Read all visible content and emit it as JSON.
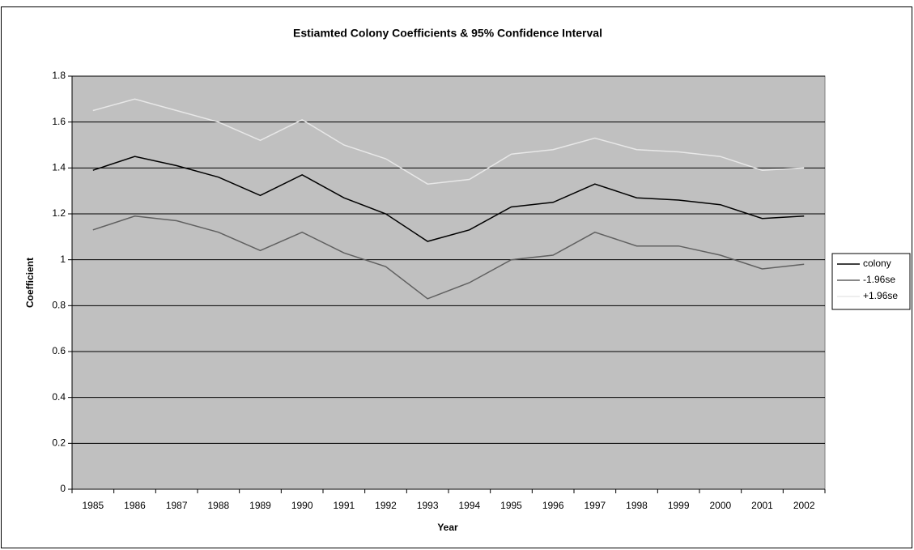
{
  "chart_data": {
    "type": "line",
    "title": "Estiamted Colony Coefficients & 95% Confidence Interval",
    "x_label": "Year",
    "y_label": "Coefficient",
    "categories": [
      "1985",
      "1986",
      "1987",
      "1988",
      "1989",
      "1990",
      "1991",
      "1992",
      "1993",
      "1994",
      "1995",
      "1996",
      "1997",
      "1998",
      "1999",
      "2000",
      "2001",
      "2002"
    ],
    "series": [
      {
        "name": "colony",
        "color": "#000000",
        "values": [
          1.39,
          1.45,
          1.41,
          1.36,
          1.28,
          1.37,
          1.27,
          1.2,
          1.08,
          1.13,
          1.23,
          1.25,
          1.33,
          1.27,
          1.26,
          1.24,
          1.18,
          1.19
        ]
      },
      {
        "name": "-1.96se",
        "color": "#606060",
        "values": [
          1.13,
          1.19,
          1.17,
          1.12,
          1.04,
          1.12,
          1.03,
          0.97,
          0.83,
          0.9,
          1.0,
          1.02,
          1.12,
          1.06,
          1.06,
          1.02,
          0.96,
          0.98
        ]
      },
      {
        "name": "+1.96se",
        "color": "#e8e8e8",
        "values": [
          1.65,
          1.7,
          1.65,
          1.6,
          1.52,
          1.61,
          1.5,
          1.44,
          1.33,
          1.35,
          1.46,
          1.48,
          1.53,
          1.48,
          1.47,
          1.45,
          1.39,
          1.4
        ]
      }
    ],
    "ylim": [
      0,
      1.8
    ],
    "yticks": [
      0,
      0.2,
      0.4,
      0.6,
      0.8,
      1,
      1.2,
      1.4,
      1.6,
      1.8
    ],
    "grid": true,
    "legend": "right",
    "plot_background": "#c0c0c0"
  }
}
